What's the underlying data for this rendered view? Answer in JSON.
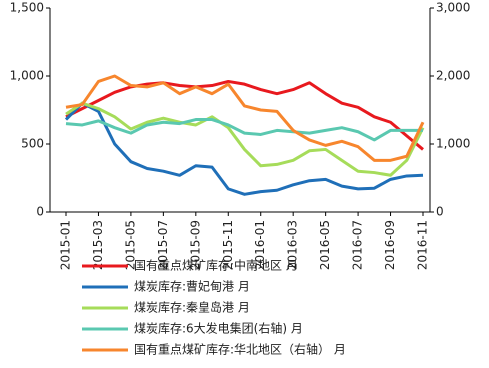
{
  "chart_data": {
    "type": "line",
    "categories": [
      "2015-01",
      null,
      "2015-03",
      null,
      "2015-05",
      null,
      "2015-07",
      null,
      "2015-09",
      null,
      "2015-11",
      null,
      "2016-01",
      null,
      "2016-03",
      null,
      "2016-05",
      null,
      "2016-07",
      null,
      "2016-09",
      null,
      "2016-11"
    ],
    "series": [
      {
        "name": "国有重点煤矿库存:中南地区  月",
        "color": "#e8191e",
        "values": [
          700,
          760,
          820,
          880,
          920,
          940,
          950,
          930,
          920,
          930,
          960,
          940,
          900,
          870,
          900,
          950,
          870,
          800,
          770,
          700,
          660,
          560,
          460
        ]
      },
      {
        "name": "煤炭库存:曹妃甸港  月",
        "color": "#1f6fb8",
        "values": [
          680,
          800,
          740,
          500,
          370,
          320,
          300,
          270,
          340,
          330,
          170,
          130,
          150,
          160,
          200,
          230,
          240,
          190,
          170,
          175,
          240,
          265,
          270
        ]
      },
      {
        "name": "煤炭库存:秦皇岛港  月",
        "color": "#a6dc5a",
        "values": [
          720,
          800,
          760,
          700,
          610,
          660,
          690,
          660,
          640,
          700,
          620,
          460,
          340,
          350,
          380,
          450,
          460,
          380,
          300,
          290,
          270,
          380,
          620
        ]
      },
      {
        "name": "煤炭库存:6大发电集团(右轴)   月",
        "color": "#5ac8b0",
        "axis": "y2",
        "values": [
          1300,
          1280,
          1340,
          1240,
          1160,
          1280,
          1320,
          1300,
          1360,
          1360,
          1280,
          1160,
          1140,
          1200,
          1180,
          1160,
          1200,
          1240,
          1180,
          1060,
          1200,
          1200,
          1200
        ]
      },
      {
        "name": "国有重点煤矿库存:华北地区（右轴）  月",
        "color": "#f7862d",
        "axis": "y2",
        "values": [
          1540,
          1580,
          1920,
          2000,
          1860,
          1840,
          1900,
          1740,
          1840,
          1740,
          1880,
          1560,
          1500,
          1480,
          1200,
          1060,
          980,
          1040,
          960,
          760,
          760,
          820,
          1320
        ]
      }
    ],
    "ylim": [
      0,
      1500
    ],
    "yticks": [
      0,
      500,
      {
        "value": 1000,
        "label": "1,000"
      },
      {
        "value": 1500,
        "label": "1,500"
      }
    ],
    "y2lim": [
      0,
      3000
    ],
    "y2ticks": [
      0,
      {
        "value": 1000,
        "label": "1,000"
      },
      {
        "value": 2000,
        "label": "2,000"
      },
      {
        "value": 3000,
        "label": "3,000"
      }
    ]
  }
}
